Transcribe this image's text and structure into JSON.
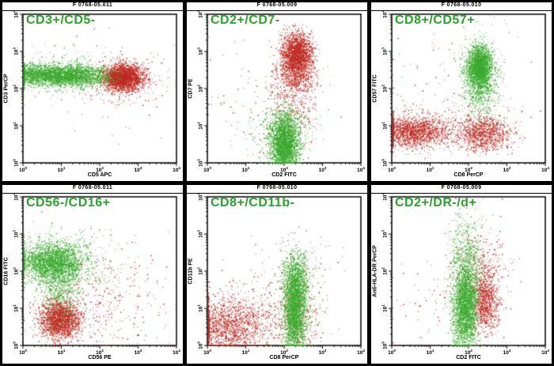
{
  "figure": {
    "background": "#000000",
    "panel_background": "#ffffff",
    "label_color": "#2aa32a",
    "dot_colors": {
      "green": "#3aa92c",
      "red": "#bf2a22"
    },
    "tick_base": "10",
    "tick_decades": [
      0,
      1,
      2,
      3,
      4
    ]
  },
  "chart_data": [
    {
      "type": "scatter",
      "title": "F 0768-05.011",
      "gate_label": "CD3+/CD5-",
      "xlabel": "CD5 APC",
      "ylabel": "CD3 PerCP",
      "x_scale": "log10",
      "y_scale": "log10",
      "xlim_log10": [
        0,
        4
      ],
      "ylim_log10": [
        0,
        4
      ],
      "series": [
        {
          "name": "red-events",
          "color": "red",
          "clusters": [
            {
              "n": 2400,
              "cx": 2.6,
              "cy": 2.3,
              "sx": 0.26,
              "sy": 0.17
            },
            {
              "n": 300,
              "cx": 2.65,
              "cy": 2.28,
              "sx": 0.5,
              "sy": 0.33
            },
            {
              "n": 25,
              "cx": 2.0,
              "cy": 1.6,
              "sx": 1.0,
              "sy": 0.8
            }
          ]
        },
        {
          "name": "green-events",
          "color": "green",
          "clusters": [
            {
              "n": 1700,
              "cx": 0.5,
              "cy": 2.38,
              "sx": 0.5,
              "sy": 0.14
            },
            {
              "n": 1400,
              "cx": 1.4,
              "cy": 2.36,
              "sx": 0.45,
              "sy": 0.15
            },
            {
              "n": 220,
              "cx": 1.0,
              "cy": 2.4,
              "sx": 0.8,
              "sy": 0.35
            }
          ]
        }
      ]
    },
    {
      "type": "scatter",
      "title": "F 0768-05.009",
      "gate_label": "CD2+/CD7-",
      "xlabel": "CD2 FITC",
      "ylabel": "CD7 PE",
      "x_scale": "log10",
      "y_scale": "log10",
      "xlim_log10": [
        0,
        4
      ],
      "ylim_log10": [
        0,
        4
      ],
      "series": [
        {
          "name": "red-events",
          "color": "red",
          "clusters": [
            {
              "n": 1800,
              "cx": 2.33,
              "cy": 2.95,
              "sx": 0.2,
              "sy": 0.28
            },
            {
              "n": 700,
              "cx": 2.3,
              "cy": 2.4,
              "sx": 0.25,
              "sy": 0.3
            },
            {
              "n": 350,
              "cx": 2.2,
              "cy": 1.6,
              "sx": 0.35,
              "sy": 0.6
            },
            {
              "n": 60,
              "cx": 0.9,
              "cy": 1.8,
              "sx": 0.5,
              "sy": 0.9
            }
          ]
        },
        {
          "name": "green-events",
          "color": "green",
          "clusters": [
            {
              "n": 2400,
              "cx": 2.0,
              "cy": 0.45,
              "sx": 0.18,
              "sy": 0.4
            },
            {
              "n": 500,
              "cx": 2.0,
              "cy": 0.9,
              "sx": 0.3,
              "sy": 0.35
            },
            {
              "n": 90,
              "cx": 1.7,
              "cy": 0.5,
              "sx": 0.5,
              "sy": 0.5
            }
          ]
        }
      ]
    },
    {
      "type": "scatter",
      "title": "F 0768-05.010",
      "gate_label": "CD8+/CD57+",
      "xlabel": "CD8 PerCP",
      "ylabel": "CD57 FITC",
      "x_scale": "log10",
      "y_scale": "log10",
      "xlim_log10": [
        0,
        4
      ],
      "ylim_log10": [
        0,
        4
      ],
      "series": [
        {
          "name": "red-events",
          "color": "red",
          "clusters": [
            {
              "n": 1500,
              "cx": 0.5,
              "cy": 0.85,
              "sx": 0.45,
              "sy": 0.2
            },
            {
              "n": 900,
              "cx": 2.4,
              "cy": 0.8,
              "sx": 0.35,
              "sy": 0.22
            },
            {
              "n": 350,
              "cx": 1.5,
              "cy": 0.9,
              "sx": 0.9,
              "sy": 0.3
            },
            {
              "n": 80,
              "cx": 1.0,
              "cy": 1.9,
              "sx": 0.8,
              "sy": 0.8
            }
          ]
        },
        {
          "name": "green-events",
          "color": "green",
          "clusters": [
            {
              "n": 2000,
              "cx": 2.28,
              "cy": 2.6,
              "sx": 0.16,
              "sy": 0.28
            },
            {
              "n": 600,
              "cx": 2.3,
              "cy": 2.1,
              "sx": 0.2,
              "sy": 0.4
            },
            {
              "n": 150,
              "cx": 2.3,
              "cy": 2.5,
              "sx": 0.4,
              "sy": 0.7
            }
          ]
        }
      ]
    },
    {
      "type": "scatter",
      "title": "F 0768-05.011",
      "gate_label": "CD56-/CD16+",
      "xlabel": "CD56 PE",
      "ylabel": "CD16 FITC",
      "x_scale": "log10",
      "y_scale": "log10",
      "xlim_log10": [
        0,
        4
      ],
      "ylim_log10": [
        0,
        4
      ],
      "series": [
        {
          "name": "red-events",
          "color": "red",
          "clusters": [
            {
              "n": 1900,
              "cx": 0.95,
              "cy": 0.7,
              "sx": 0.26,
              "sy": 0.26
            },
            {
              "n": 250,
              "cx": 1.8,
              "cy": 1.0,
              "sx": 0.8,
              "sy": 0.6
            },
            {
              "n": 120,
              "cx": 2.6,
              "cy": 1.5,
              "sx": 0.7,
              "sy": 0.8
            }
          ]
        },
        {
          "name": "green-events",
          "color": "green",
          "clusters": [
            {
              "n": 2200,
              "cx": 0.75,
              "cy": 2.25,
              "sx": 0.42,
              "sy": 0.26
            },
            {
              "n": 600,
              "cx": 1.0,
              "cy": 1.6,
              "sx": 0.28,
              "sy": 0.5
            },
            {
              "n": 250,
              "cx": 1.2,
              "cy": 2.3,
              "sx": 0.7,
              "sy": 0.5
            }
          ]
        }
      ]
    },
    {
      "type": "scatter",
      "title": "F 0768-05.010",
      "gate_label": "CD8+/CD11b-",
      "xlabel": "CD8 PerCP",
      "ylabel": "CD11b PE",
      "x_scale": "log10",
      "y_scale": "log10",
      "xlim_log10": [
        0,
        4
      ],
      "ylim_log10": [
        0,
        4
      ],
      "series": [
        {
          "name": "red-events",
          "color": "red",
          "clusters": [
            {
              "n": 1300,
              "cx": 0.5,
              "cy": 0.5,
              "sx": 0.5,
              "sy": 0.35
            },
            {
              "n": 400,
              "cx": 1.2,
              "cy": 0.9,
              "sx": 0.8,
              "sy": 0.5
            },
            {
              "n": 300,
              "cx": 2.3,
              "cy": 0.7,
              "sx": 0.3,
              "sy": 0.6
            },
            {
              "n": 60,
              "cx": 2.4,
              "cy": 2.2,
              "sx": 0.5,
              "sy": 0.5
            }
          ]
        },
        {
          "name": "green-events",
          "color": "green",
          "clusters": [
            {
              "n": 2200,
              "cx": 2.27,
              "cy": 0.9,
              "sx": 0.15,
              "sy": 0.6
            },
            {
              "n": 700,
              "cx": 2.3,
              "cy": 1.8,
              "sx": 0.17,
              "sy": 0.35
            },
            {
              "n": 150,
              "cx": 2.3,
              "cy": 1.2,
              "sx": 0.35,
              "sy": 0.9
            }
          ]
        }
      ]
    },
    {
      "type": "scatter",
      "title": "F 0768-05.009",
      "gate_label": "CD2+/DR-/d+",
      "xlabel": "CD2 FITC",
      "ylabel": "Anti-HLA-DR PerCP",
      "x_scale": "log10",
      "y_scale": "log10",
      "xlim_log10": [
        0,
        4
      ],
      "ylim_log10": [
        0,
        4
      ],
      "series": [
        {
          "name": "red-events",
          "color": "red",
          "clusters": [
            {
              "n": 900,
              "cx": 2.42,
              "cy": 1.2,
              "sx": 0.17,
              "sy": 0.4
            },
            {
              "n": 350,
              "cx": 2.35,
              "cy": 2.0,
              "sx": 0.35,
              "sy": 0.7
            },
            {
              "n": 60,
              "cx": 0.9,
              "cy": 1.2,
              "sx": 0.6,
              "sy": 0.5
            }
          ]
        },
        {
          "name": "green-events",
          "color": "green",
          "clusters": [
            {
              "n": 2200,
              "cx": 1.9,
              "cy": 1.0,
              "sx": 0.16,
              "sy": 0.55
            },
            {
              "n": 600,
              "cx": 1.95,
              "cy": 2.0,
              "sx": 0.2,
              "sy": 0.55
            },
            {
              "n": 150,
              "cx": 1.9,
              "cy": 2.9,
              "sx": 0.25,
              "sy": 0.4
            }
          ]
        }
      ]
    }
  ]
}
